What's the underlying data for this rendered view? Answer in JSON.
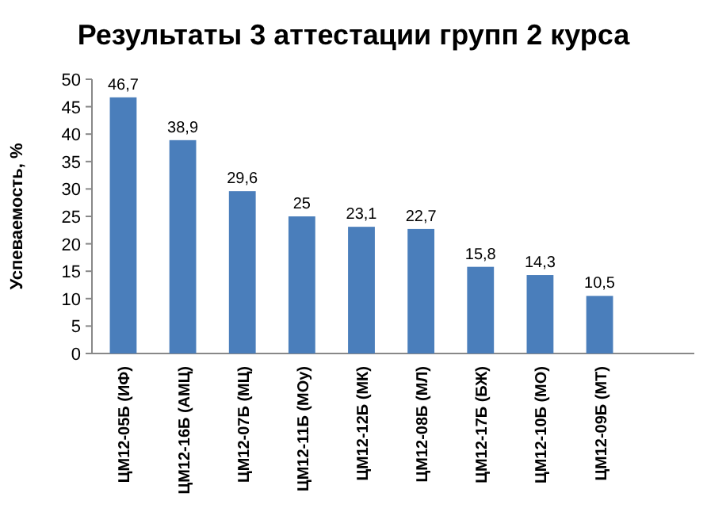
{
  "chart_data": {
    "type": "bar",
    "title": "Результаты 3 аттестации групп 2 курса",
    "ylabel": "Успеваемость, %",
    "categories": [
      "ЦМ12-05Б (ИФ)",
      "ЦМ12-16Б (АМЦ)",
      "ЦМ12-07Б (МЦ)",
      "ЦМ12-11Б (МОу)",
      "ЦМ12-12Б (МК)",
      "ЦМ12-08Б (МЛ)",
      "ЦМ12-17Б (БЖ)",
      "ЦМ12-10Б (МО)",
      "ЦМ12-09Б (МТ)"
    ],
    "values": [
      46.7,
      38.9,
      29.6,
      25,
      23.1,
      22.7,
      15.8,
      14.3,
      10.5
    ],
    "value_labels": [
      "46,7",
      "38,9",
      "29,6",
      "25",
      "23,1",
      "22,7",
      "15,8",
      "14,3",
      "10,5"
    ],
    "color": "#4a7ebb",
    "ylim": [
      0,
      50
    ],
    "yticks": [
      0,
      5,
      10,
      15,
      20,
      25,
      30,
      35,
      40,
      45,
      50
    ]
  }
}
